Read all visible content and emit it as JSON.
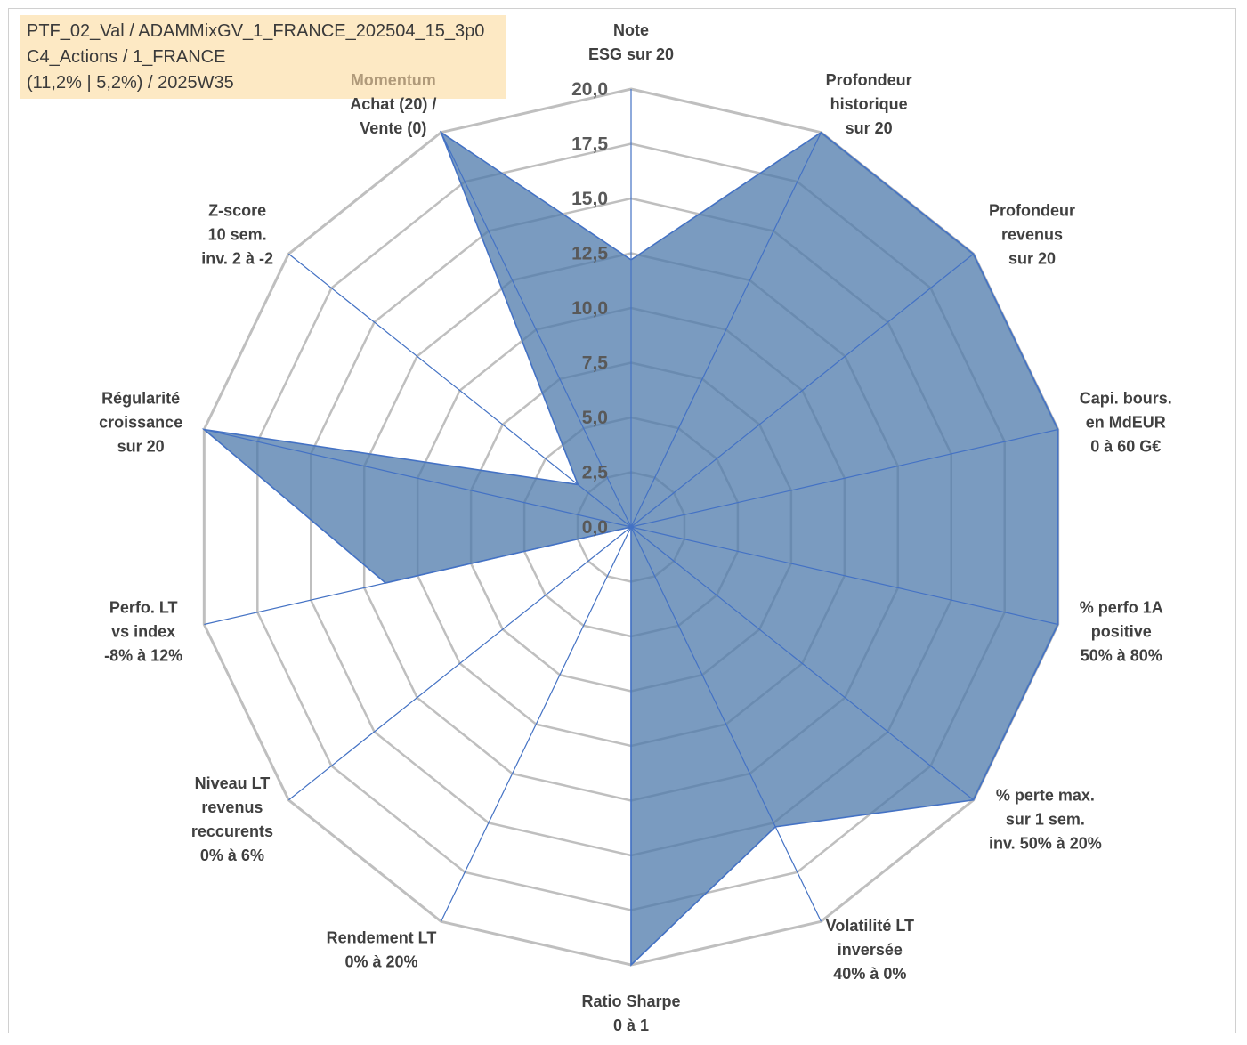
{
  "info": {
    "line1": "PTF_02_Val / ADAMMixGV_1_FRANCE_202504_15_3p0",
    "line2": "C4_Actions / 1_FRANCE",
    "line3": "(11,2% | 5,2%) / 2025W35"
  },
  "chart_data": {
    "type": "radar",
    "rmin": 0,
    "rmax": 20,
    "ticks": [
      "0,0",
      "2,5",
      "5,0",
      "7,5",
      "10,0",
      "12,5",
      "15,0",
      "17,5",
      "20,0"
    ],
    "categories": [
      [
        "Note",
        "ESG sur 20"
      ],
      [
        "Profondeur",
        "historique",
        "sur 20"
      ],
      [
        "Profondeur",
        "revenus",
        "sur 20"
      ],
      [
        "Capi. bours.",
        "en MdEUR",
        "0 à 60 G€"
      ],
      [
        "% perfo 1A",
        "positive",
        "50% à 80%"
      ],
      [
        "% perte max.",
        "sur 1 sem.",
        "inv. 50% à 20%"
      ],
      [
        "Volatilité LT",
        "inversée",
        "40% à 0%"
      ],
      [
        "Ratio Sharpe",
        "0 à 1"
      ],
      [
        "Rendement LT",
        "0% à 20%"
      ],
      [
        "Niveau LT",
        "revenus",
        "reccurents",
        "0% à 6%"
      ],
      [
        "Perfo. LT",
        "vs index",
        "-8% à 12%"
      ],
      [
        "Régularité",
        "croissance",
        "sur 20"
      ],
      [
        "Z-score",
        "10 sem.",
        "inv. 2 à -2"
      ],
      [
        "Momentum",
        "Achat (20) /",
        "Vente (0)"
      ]
    ],
    "muted_label_lines": {
      "13": [
        0
      ]
    },
    "series": [
      {
        "values": [
          12.2,
          20,
          20,
          20,
          20,
          20,
          15.2,
          20,
          0,
          0,
          11.5,
          20,
          3.1,
          20
        ]
      }
    ],
    "colors": {
      "fill": "#4d79ab",
      "fill_opacity": 0.75,
      "line": "#4472c4",
      "grid": "#bfbfbf",
      "frame_fill": "#fde9c4"
    },
    "grid": true
  }
}
